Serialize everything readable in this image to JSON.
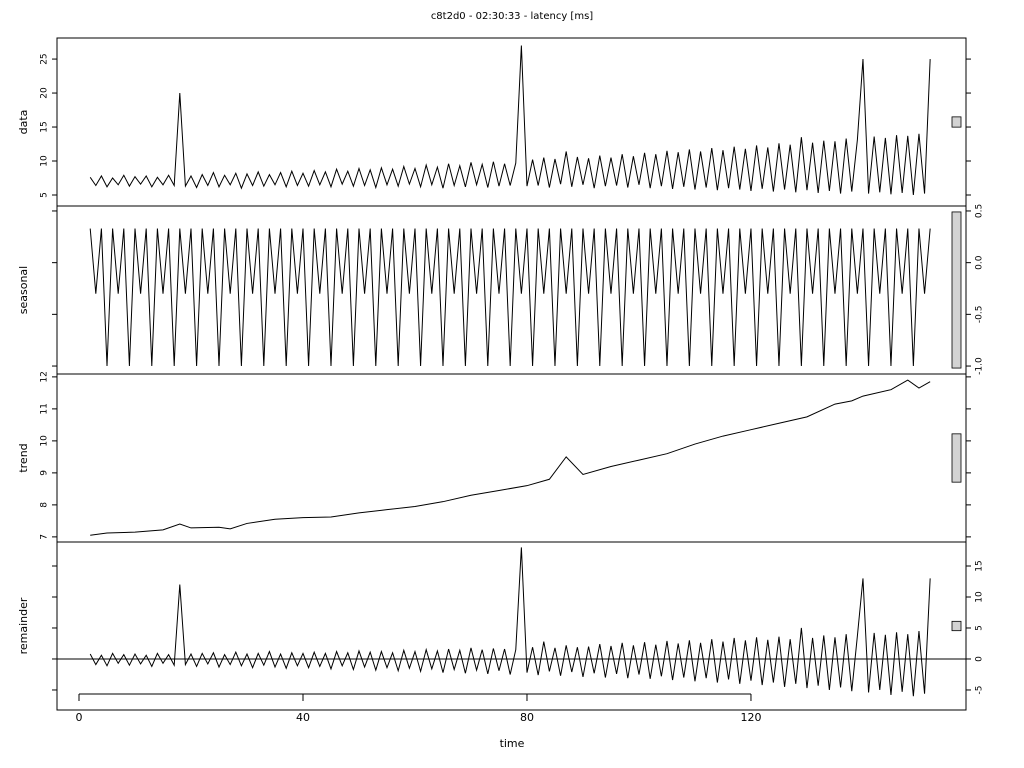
{
  "chart_data": {
    "type": "stl",
    "title": "c8t2d0 - 02:30:33 - latency [ms]",
    "xlabel": "time",
    "xlim": [
      -3.93,
      158.4
    ],
    "xticks": [
      0,
      40,
      80,
      120
    ],
    "range_bar": 1.51,
    "x": [
      2,
      3,
      4,
      5,
      6,
      7,
      8,
      9,
      10,
      11,
      12,
      13,
      14,
      15,
      16,
      17,
      18,
      19,
      20,
      21,
      22,
      23,
      24,
      25,
      26,
      27,
      28,
      29,
      30,
      31,
      32,
      33,
      34,
      35,
      36,
      37,
      38,
      39,
      40,
      41,
      42,
      43,
      44,
      45,
      46,
      47,
      48,
      49,
      50,
      51,
      52,
      53,
      54,
      55,
      56,
      57,
      58,
      59,
      60,
      61,
      62,
      63,
      64,
      65,
      66,
      67,
      68,
      69,
      70,
      71,
      72,
      73,
      74,
      75,
      76,
      77,
      78,
      79,
      80,
      81,
      82,
      83,
      84,
      85,
      86,
      87,
      88,
      89,
      90,
      91,
      92,
      93,
      94,
      95,
      96,
      97,
      98,
      99,
      100,
      101,
      102,
      103,
      104,
      105,
      106,
      107,
      108,
      109,
      110,
      111,
      112,
      113,
      114,
      115,
      116,
      117,
      118,
      119,
      120,
      121,
      122,
      123,
      124,
      125,
      126,
      127,
      128,
      129,
      130,
      131,
      132,
      133,
      134,
      135,
      136,
      137,
      138,
      139,
      140,
      141,
      142,
      143,
      144,
      145,
      146,
      147,
      148,
      149,
      150,
      151,
      152
    ],
    "panels": [
      {
        "label": "data",
        "color": "#000000",
        "tick_side": "left",
        "ylim": [
          3.38,
          28.1
        ],
        "yticks": [
          5,
          10,
          15,
          20,
          25
        ],
        "values": [
          7.6,
          6.4,
          7.8,
          6.2,
          7.5,
          6.5,
          7.9,
          6.3,
          7.7,
          6.6,
          7.8,
          6.2,
          7.6,
          6.5,
          7.9,
          6.4,
          20,
          6.3,
          7.8,
          6.1,
          8.0,
          6.4,
          8.3,
          6.2,
          7.9,
          6.5,
          8.2,
          6.0,
          8.1,
          6.4,
          8.4,
          6.3,
          8.0,
          6.5,
          8.3,
          6.2,
          8.5,
          6.4,
          8.2,
          6.3,
          8.6,
          6.5,
          8.4,
          6.2,
          8.8,
          6.6,
          8.5,
          6.3,
          8.9,
          6.4,
          8.7,
          6.1,
          9.0,
          6.5,
          8.8,
          6.3,
          9.2,
          6.6,
          8.9,
          6.2,
          9.4,
          6.5,
          9.1,
          6.0,
          9.6,
          6.4,
          9.3,
          6.2,
          9.8,
          6.5,
          9.5,
          6.1,
          9.9,
          6.3,
          9.6,
          6.4,
          9.7,
          27,
          6.3,
          10.2,
          6.4,
          10.5,
          6.1,
          10.3,
          6.6,
          11.4,
          6.2,
          10.6,
          6.5,
          10.4,
          6.0,
          10.8,
          6.3,
          10.5,
          6.4,
          11.0,
          6.1,
          10.7,
          6.5,
          11.2,
          6.0,
          11.0,
          6.3,
          11.5,
          5.9,
          11.3,
          6.2,
          11.7,
          5.8,
          11.4,
          6.1,
          11.9,
          5.7,
          11.6,
          6.0,
          12.1,
          5.8,
          11.8,
          5.6,
          12.3,
          5.9,
          12.0,
          5.5,
          12.6,
          5.8,
          12.4,
          5.4,
          13.5,
          5.7,
          12.7,
          5.3,
          13.0,
          5.6,
          12.9,
          5.2,
          13.3,
          5.5,
          13.1,
          25,
          5.2,
          13.6,
          5.4,
          13.4,
          5.1,
          13.8,
          5.3,
          13.7,
          5.0,
          14.0,
          5.2,
          25
        ]
      },
      {
        "label": "seasonal",
        "color": "#000000",
        "tick_side": "right",
        "ylim": [
          -1.077,
          0.548
        ],
        "yticks": [
          {
            "value": -1.0,
            "label": "-1.0"
          },
          -0.5,
          {
            "value": 0,
            "label": "0.0"
          },
          0.5
        ],
        "values": [
          0.33,
          -0.3,
          0.33,
          -1.0,
          0.33,
          -0.3,
          0.33,
          -1.0,
          0.33,
          -0.3,
          0.33,
          -1.0,
          0.33,
          -0.3,
          0.33,
          -1.0,
          0.33,
          -0.3,
          0.33,
          -1.0,
          0.33,
          -0.3,
          0.33,
          -1.0,
          0.33,
          -0.3,
          0.33,
          -1.0,
          0.33,
          -0.3,
          0.33,
          -1.0,
          0.33,
          -0.3,
          0.33,
          -1.0,
          0.33,
          -0.3,
          0.33,
          -1.0,
          0.33,
          -0.3,
          0.33,
          -1.0,
          0.33,
          -0.3,
          0.33,
          -1.0,
          0.33,
          -0.3,
          0.33,
          -1.0,
          0.33,
          -0.3,
          0.33,
          -1.0,
          0.33,
          -0.3,
          0.33,
          -1.0,
          0.33,
          -0.3,
          0.33,
          -1.0,
          0.33,
          -0.3,
          0.33,
          -1.0,
          0.33,
          -0.3,
          0.33,
          -1.0,
          0.33,
          -0.3,
          0.33,
          -1.0,
          0.33,
          -0.3,
          0.33,
          -1.0,
          0.33,
          -0.3,
          0.33,
          -1.0,
          0.33,
          -0.3,
          0.33,
          -1.0,
          0.33,
          -0.3,
          0.33,
          -1.0,
          0.33,
          -0.3,
          0.33,
          -1.0,
          0.33,
          -0.3,
          0.33,
          -1.0,
          0.33,
          -0.3,
          0.33,
          -1.0,
          0.33,
          -0.3,
          0.33,
          -1.0,
          0.33,
          -0.3,
          0.33,
          -1.0,
          0.33,
          -0.3,
          0.33,
          -1.0,
          0.33,
          -0.3,
          0.33,
          -1.0,
          0.33,
          -0.3,
          0.33,
          -1.0,
          0.33,
          -0.3,
          0.33,
          -1.0,
          0.33,
          -0.3,
          0.33,
          -1.0,
          0.33,
          -0.3,
          0.33,
          -1.0,
          0.33,
          -0.3,
          0.33,
          -1.0,
          0.33,
          -0.3,
          0.33,
          -1.0,
          0.33,
          -0.3,
          0.33,
          -1.0,
          0.33,
          -0.3,
          0.33
        ]
      },
      {
        "label": "trend",
        "color": "#000000",
        "tick_side": "left",
        "ylim": [
          6.84,
          12.09
        ],
        "yticks": [
          7,
          8,
          9,
          10,
          11,
          12
        ],
        "x": [
          2,
          5,
          10,
          15,
          18,
          20,
          25,
          27,
          30,
          35,
          40,
          45,
          50,
          55,
          60,
          65,
          70,
          75,
          80,
          84,
          87,
          90,
          95,
          100,
          105,
          110,
          115,
          120,
          125,
          130,
          135,
          138,
          140,
          145,
          148,
          150,
          152
        ],
        "values": [
          7.05,
          7.12,
          7.15,
          7.22,
          7.4,
          7.28,
          7.3,
          7.25,
          7.42,
          7.55,
          7.6,
          7.62,
          7.75,
          7.85,
          7.95,
          8.1,
          8.3,
          8.45,
          8.6,
          8.8,
          9.5,
          8.95,
          9.2,
          9.4,
          9.6,
          9.9,
          10.15,
          10.35,
          10.55,
          10.75,
          11.15,
          11.25,
          11.4,
          11.6,
          11.9,
          11.65,
          11.85
        ]
      },
      {
        "label": "remainder",
        "color": "#000000",
        "tick_side": "right",
        "ylim": [
          -8.23,
          18.87
        ],
        "yticks": [
          -5,
          0,
          5,
          10,
          15
        ],
        "hline": 0,
        "values": [
          0.8,
          -0.9,
          0.6,
          -1.1,
          0.9,
          -0.7,
          0.7,
          -1.0,
          0.8,
          -0.8,
          0.6,
          -1.2,
          0.9,
          -0.7,
          0.7,
          -1.0,
          12,
          -0.9,
          0.8,
          -1.2,
          0.9,
          -0.8,
          1.0,
          -1.3,
          0.7,
          -0.9,
          1.1,
          -1.1,
          0.8,
          -1.4,
          0.9,
          -1.0,
          1.2,
          -1.3,
          0.8,
          -1.5,
          1.0,
          -1.1,
          0.9,
          -1.4,
          1.1,
          -1.2,
          0.9,
          -1.6,
          1.2,
          -1.1,
          1.0,
          -1.7,
          1.3,
          -1.3,
          1.1,
          -1.8,
          1.2,
          -1.4,
          1.0,
          -1.9,
          1.4,
          -1.5,
          1.2,
          -2.0,
          1.5,
          -1.6,
          1.3,
          -2.2,
          1.6,
          -1.7,
          1.4,
          -2.3,
          1.8,
          -1.8,
          1.5,
          -2.4,
          1.7,
          -1.9,
          1.6,
          -2.5,
          1.5,
          18,
          -2.2,
          1.9,
          -2.6,
          2.8,
          -2.0,
          1.8,
          -2.7,
          2.2,
          -2.1,
          1.9,
          -2.9,
          2.0,
          -2.3,
          2.4,
          -3.0,
          2.1,
          -2.4,
          2.6,
          -3.1,
          2.2,
          -2.5,
          2.7,
          -3.2,
          2.3,
          -2.8,
          2.9,
          -3.4,
          2.5,
          -3.0,
          3.0,
          -3.6,
          2.6,
          -3.1,
          3.2,
          -3.8,
          2.8,
          -3.3,
          3.4,
          -4.0,
          3.0,
          -3.5,
          3.5,
          -4.2,
          3.1,
          -3.8,
          3.6,
          -4.5,
          3.2,
          -4.0,
          5.0,
          -4.7,
          3.4,
          -4.3,
          3.8,
          -5.0,
          3.5,
          -4.6,
          4.0,
          -5.2,
          3.7,
          13,
          -5.4,
          4.2,
          -5.0,
          3.9,
          -5.8,
          4.3,
          -5.3,
          4.0,
          -6.0,
          4.5,
          -5.6,
          13
        ]
      }
    ]
  }
}
